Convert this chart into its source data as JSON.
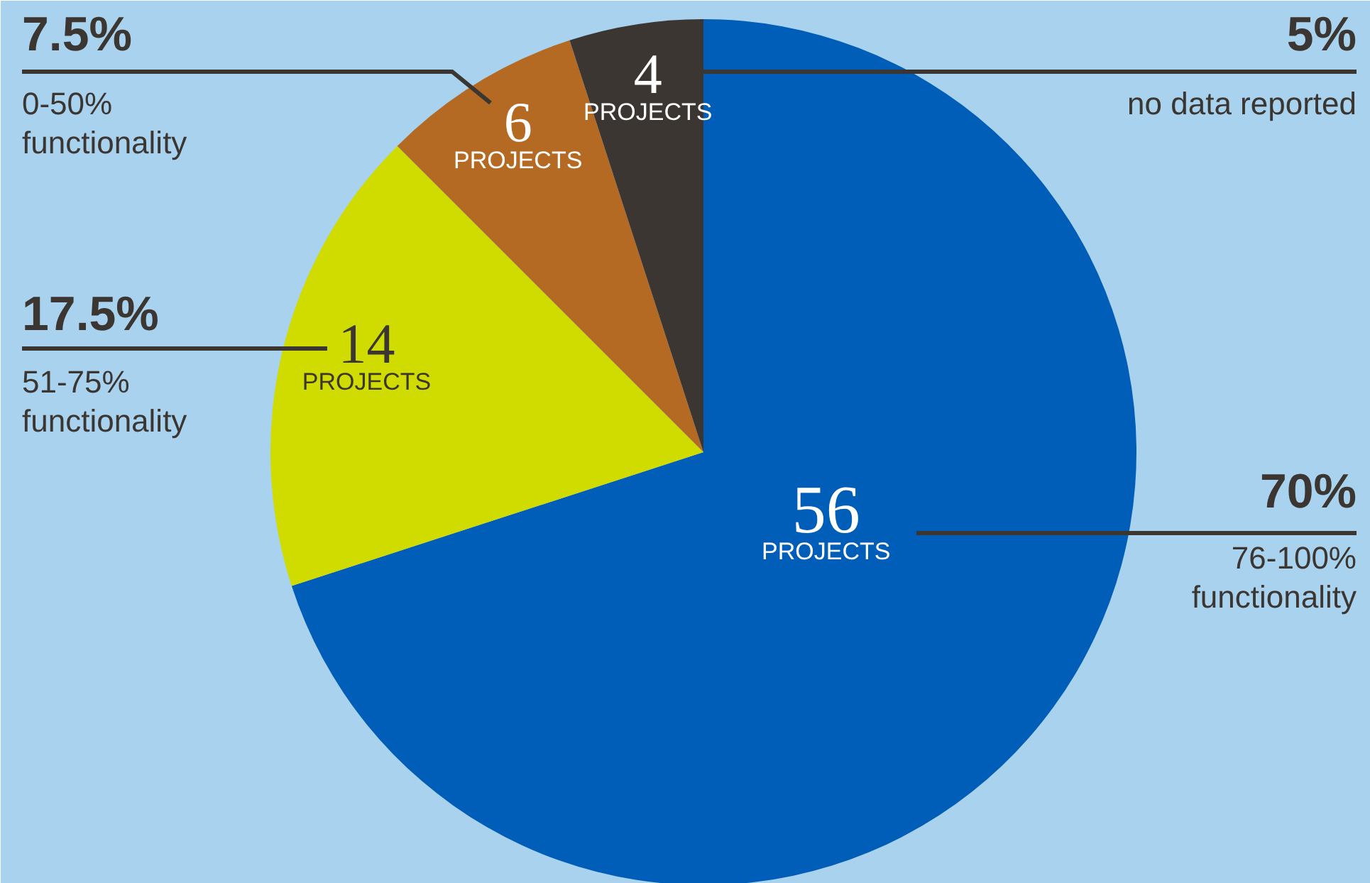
{
  "chart_data": {
    "type": "pie",
    "categories": [
      "76-100%\nfunctionality",
      "51-75%\nfunctionality",
      "0-50%\nfunctionality",
      "no data reported"
    ],
    "values": [
      56,
      14,
      6,
      4
    ],
    "colors": [
      "#005eb8",
      "#d0dc00",
      "#b56a24",
      "#3b3631"
    ],
    "value_labels": [
      "56\nPROJECTS",
      "14\nPROJECTS",
      "6\nPROJECTS",
      "4\nPROJECTS"
    ],
    "annotations": [
      "70%",
      "17.5%",
      "7.5%",
      "5%"
    ]
  }
}
